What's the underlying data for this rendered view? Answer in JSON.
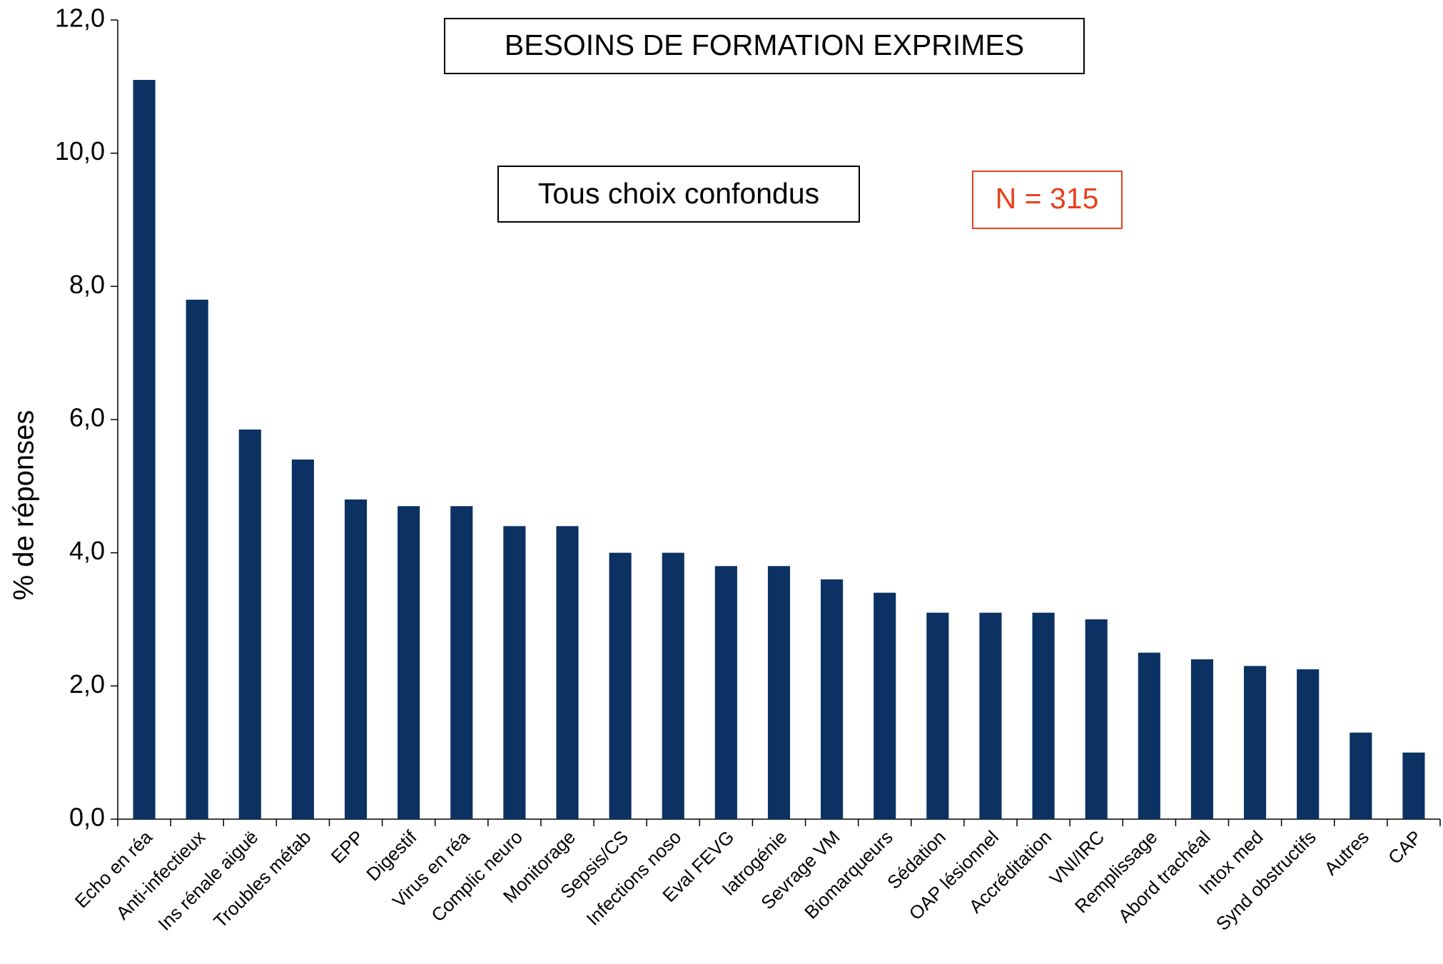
{
  "chart_data": {
    "type": "bar",
    "title": "BESOINS DE FORMATION EXPRIMES",
    "subtitle": "Tous choix confondus",
    "annotation": "N = 315",
    "y_label": "% de réponses",
    "categories": [
      "Echo en réa",
      "Anti-infectieux",
      "Ins rénale aiguë",
      "Troubles métab",
      "EPP",
      "Digestif",
      "Virus en réa",
      "Complic neuro",
      "Monitorage",
      "Sepsis/CS",
      "Infections noso",
      "Eval FEVG",
      "Iatrogénie",
      "Sevrage VM",
      "Biomarqueurs",
      "Sédation",
      "OAP lésionnel",
      "Accréditation",
      "VNI/IRC",
      "Remplissage",
      "Abord trachéal",
      "Intox med",
      "Synd obstructifs",
      "Autres",
      "CAP"
    ],
    "values": [
      11.1,
      7.8,
      5.85,
      5.4,
      4.8,
      4.7,
      4.7,
      4.4,
      4.4,
      4.0,
      4.0,
      3.8,
      3.8,
      3.6,
      3.4,
      3.1,
      3.1,
      3.1,
      3.0,
      2.5,
      2.4,
      2.3,
      2.25,
      1.3,
      1.0
    ],
    "color": "#0b3263",
    "annotation_color": "#e8401c",
    "ylim": [
      0,
      12
    ],
    "yticks": [
      {
        "value": 0,
        "label": "0,0"
      },
      {
        "value": 2,
        "label": "2,0"
      },
      {
        "value": 4,
        "label": "4,0"
      },
      {
        "value": 6,
        "label": "6,0"
      },
      {
        "value": 8,
        "label": "8,0"
      },
      {
        "value": 10,
        "label": "10,0"
      },
      {
        "value": 12,
        "label": "12,0"
      }
    ],
    "grid": false
  }
}
